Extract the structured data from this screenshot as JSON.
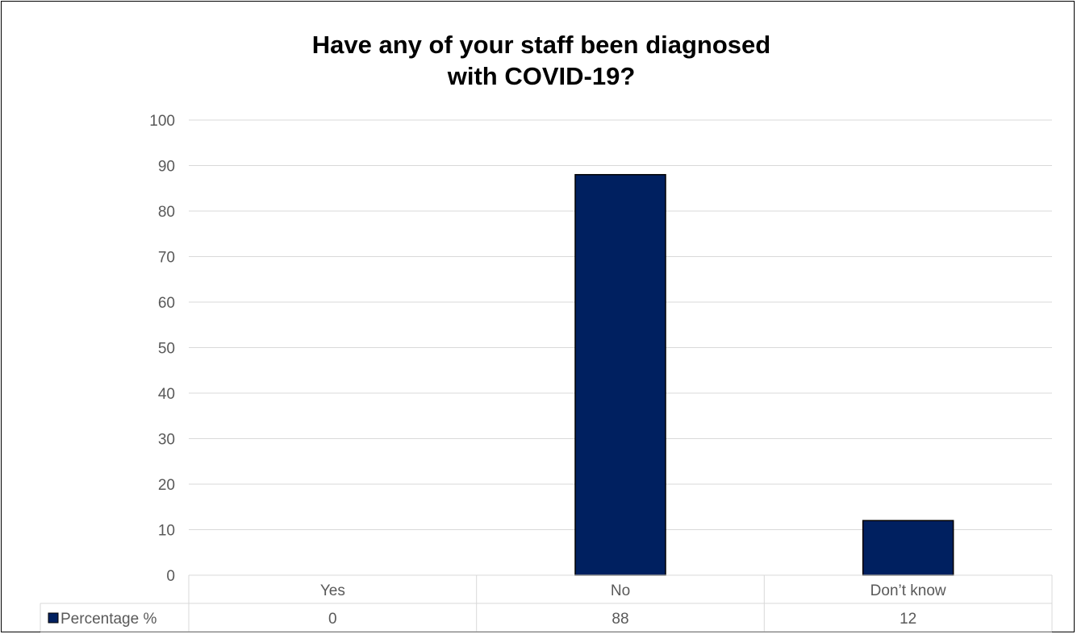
{
  "chart_data": {
    "type": "bar",
    "title_lines": [
      "Have any of your staff been diagnosed",
      "with COVID-19?"
    ],
    "categories": [
      "Yes",
      "No",
      "Don’t know"
    ],
    "series": [
      {
        "name": "Percentage %",
        "values": [
          0,
          88,
          12
        ]
      }
    ],
    "ylim": [
      0,
      100
    ],
    "y_ticks": [
      0,
      10,
      20,
      30,
      40,
      50,
      60,
      70,
      80,
      90,
      100
    ],
    "grid": true,
    "legend": "data-table",
    "data_table_values": [
      "0",
      "88",
      "12"
    ]
  },
  "colors": {
    "bar_fill": "#002060",
    "bar_stroke": "#000000",
    "grid": "#d9d9d9",
    "text": "#595959",
    "title": "#000000"
  }
}
